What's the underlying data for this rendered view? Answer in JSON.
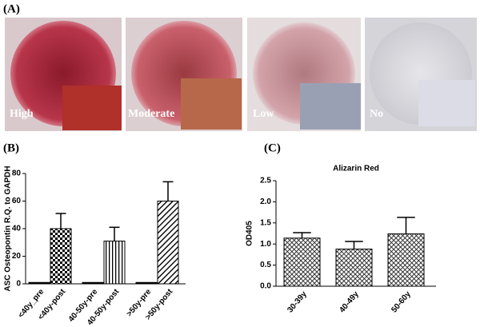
{
  "panels": {
    "a": "(A)",
    "b": "(B)",
    "c": "(C)"
  },
  "photos": [
    "High",
    "Moderate",
    "Low",
    "No"
  ],
  "chart_data": [
    {
      "type": "bar",
      "ylabel": "ASC Osteopontin R.Q. to GAPDH",
      "categories": [
        "<40y_pre",
        "<40y-post",
        "40-50y-pre",
        "40-50y-post",
        ">50y-pre",
        ">50y-post"
      ],
      "values": [
        1,
        40,
        1,
        31,
        1,
        60
      ],
      "errors": [
        null,
        11,
        null,
        10,
        null,
        14
      ],
      "ylim": [
        0,
        80
      ],
      "yticks": [
        0,
        20,
        40,
        60,
        80
      ],
      "color": "#000000"
    },
    {
      "type": "bar",
      "title": "Alizarin Red",
      "ylabel": "OD405",
      "categories": [
        "30-39y",
        "40-49y",
        "50-60y"
      ],
      "values": [
        1.14,
        0.88,
        1.24
      ],
      "errors": [
        0.13,
        0.18,
        0.39
      ],
      "ylim": [
        0,
        2.5
      ],
      "yticks": [
        {
          "value": 0,
          "label": "0.0"
        },
        0.5,
        {
          "value": 1,
          "label": "1.0"
        },
        1.5,
        {
          "value": 2,
          "label": "2.0"
        },
        2.5
      ],
      "color": "#000000"
    }
  ]
}
